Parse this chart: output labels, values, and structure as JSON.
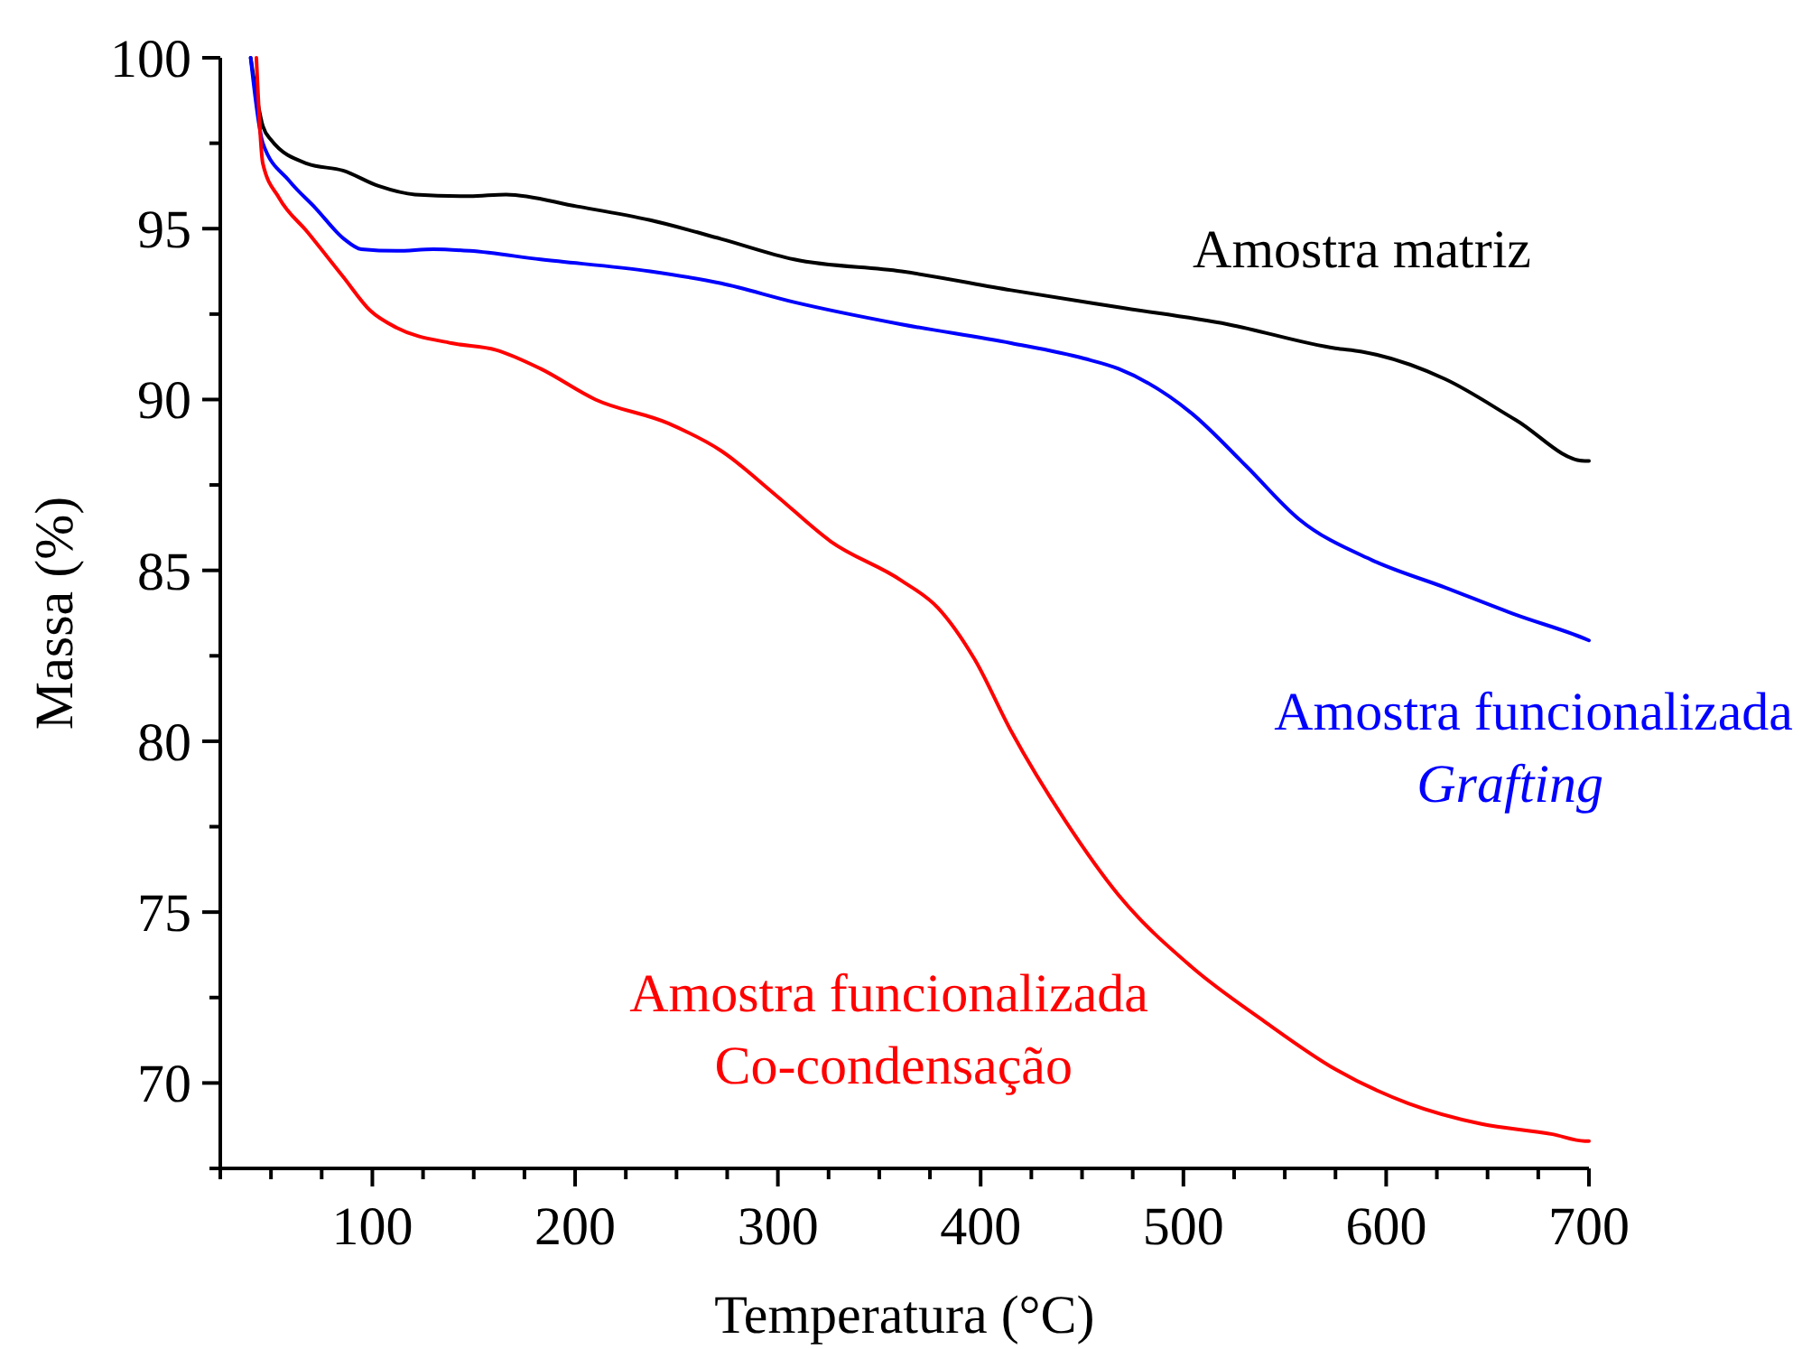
{
  "chart_data": {
    "type": "line",
    "xlabel": "Temperatura (°C)",
    "ylabel": "Massa (%)",
    "xlim": [
      25,
      700
    ],
    "ylim": [
      67.5,
      100
    ],
    "xticks": [
      {
        "value": 25,
        "label": null
      },
      {
        "value": 50,
        "label": null
      },
      {
        "value": 75,
        "label": null
      },
      100,
      {
        "value": 125,
        "label": null
      },
      {
        "value": 150,
        "label": null
      },
      {
        "value": 175,
        "label": null
      },
      200,
      {
        "value": 225,
        "label": null
      },
      {
        "value": 250,
        "label": null
      },
      {
        "value": 275,
        "label": null
      },
      300,
      {
        "value": 325,
        "label": null
      },
      {
        "value": 350,
        "label": null
      },
      {
        "value": 375,
        "label": null
      },
      400,
      {
        "value": 425,
        "label": null
      },
      {
        "value": 450,
        "label": null
      },
      {
        "value": 475,
        "label": null
      },
      500,
      {
        "value": 525,
        "label": null
      },
      {
        "value": 550,
        "label": null
      },
      {
        "value": 575,
        "label": null
      },
      600,
      {
        "value": 625,
        "label": null
      },
      {
        "value": 650,
        "label": null
      },
      {
        "value": 675,
        "label": null
      },
      700
    ],
    "yticks": [
      {
        "value": 67.5,
        "label": null
      },
      70,
      {
        "value": 72.5,
        "label": null
      },
      75,
      {
        "value": 77.5,
        "label": null
      },
      80,
      {
        "value": 82.5,
        "label": null
      },
      85,
      {
        "value": 87.5,
        "label": null
      },
      90,
      {
        "value": 92.5,
        "label": null
      },
      95,
      {
        "value": 97.5,
        "label": null
      },
      100
    ],
    "grid": false,
    "legend": false,
    "marker": "none",
    "line_style": "solid",
    "series": [
      {
        "name": "Amostra matriz",
        "color": "#000000",
        "x": [
          40,
          46,
          50,
          68,
          85.5,
          103,
          121,
          148,
          166,
          201,
          237,
          272,
          308,
          361,
          415,
          468,
          522,
          575,
          588,
          629,
          664,
          698,
          700
        ],
        "values": [
          100,
          98,
          97.6,
          96.9,
          96.7,
          96.25,
          96,
          95.95,
          96,
          95.65,
          95.25,
          94.7,
          94.1,
          93.75,
          93.2,
          92.7,
          92.2,
          91.5,
          91.4,
          90.6,
          89.4,
          88.2,
          88.2
        ]
      },
      {
        "name": "Amostra funcionalizada\nGrafting",
        "color": "#0000ff",
        "x": [
          40,
          46,
          59,
          72,
          86,
          94.5,
          112,
          130,
          148,
          183,
          237,
          272,
          308,
          361,
          415,
          451,
          468,
          504,
          531,
          557,
          593,
          629,
          664,
          698,
          700
        ],
        "values": [
          100,
          97.5,
          96.4,
          95.6,
          94.7,
          94.4,
          94.35,
          94.4,
          94.35,
          94.1,
          93.75,
          93.4,
          92.85,
          92.2,
          91.65,
          91.2,
          90.9,
          89.6,
          88.05,
          86.5,
          85.3,
          84.5,
          83.7,
          83,
          82.95
        ]
      },
      {
        "name": "Amostra funcionalizada\nCo-condensação",
        "color": "#ff0000",
        "x": [
          42.8,
          46,
          54,
          68,
          85.5,
          99,
          112,
          139,
          161,
          183,
          210,
          246,
          272,
          299,
          326,
          361,
          379,
          397,
          415,
          442,
          468,
          504,
          540,
          575,
          611,
          647,
          682,
          698,
          700
        ],
        "values": [
          100,
          96.9,
          95.9,
          94.9,
          93.6,
          92.6,
          92.1,
          91.65,
          91.45,
          90.9,
          90,
          89.3,
          88.5,
          87.2,
          85.85,
          84.7,
          83.9,
          82.4,
          80.3,
          77.65,
          75.5,
          73.4,
          71.8,
          70.4,
          69.4,
          68.8,
          68.5,
          68.3,
          68.3
        ]
      }
    ]
  }
}
